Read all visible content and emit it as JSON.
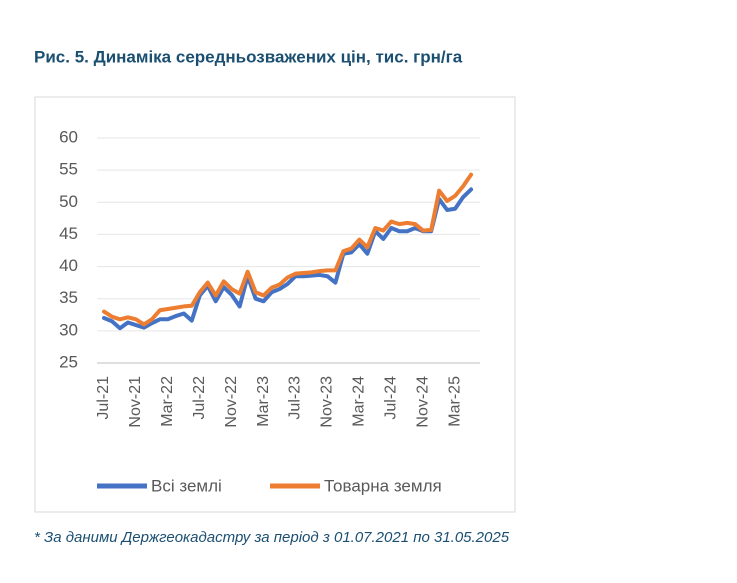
{
  "chart_data": {
    "type": "line",
    "title": "Рис. 5.  Динаміка середньозважених цін, тис. грн/га",
    "footnote": "* За даними Держгеокадастру за період з 01.07.2021 по 31.05.2025",
    "categories": [
      "Jul-21",
      null,
      null,
      null,
      "Nov-21",
      null,
      null,
      null,
      "Mar-22",
      null,
      null,
      null,
      "Jul-22",
      null,
      null,
      null,
      "Nov-22",
      null,
      null,
      null,
      "Mar-23",
      null,
      null,
      null,
      "Jul-23",
      null,
      null,
      null,
      "Nov-23",
      null,
      null,
      null,
      "Mar-24",
      null,
      null,
      null,
      "Jul-24",
      null,
      null,
      null,
      "Nov-24",
      null,
      null,
      null,
      "Mar-25",
      null,
      null
    ],
    "series": [
      {
        "name": "Всі землі",
        "color": "#4472c4",
        "values": [
          32.0,
          31.5,
          30.4,
          31.3,
          30.9,
          30.5,
          31.2,
          31.8,
          31.8,
          32.3,
          32.7,
          31.6,
          35.5,
          37.0,
          34.6,
          36.8,
          35.6,
          33.8,
          38.5,
          35.0,
          34.6,
          36.0,
          36.5,
          37.3,
          38.5,
          38.5,
          38.6,
          38.7,
          38.5,
          37.5,
          42.0,
          42.2,
          43.5,
          42.0,
          45.5,
          44.3,
          46.0,
          45.5,
          45.5,
          46.0,
          45.5,
          45.5,
          50.5,
          48.8,
          49.0,
          50.8,
          52.0
        ]
      },
      {
        "name": "Товарна земля",
        "color": "#ed7d31",
        "values": [
          33.0,
          32.2,
          31.8,
          32.1,
          31.8,
          31.0,
          31.8,
          33.2,
          33.4,
          33.6,
          33.8,
          33.9,
          36.0,
          37.5,
          35.5,
          37.7,
          36.5,
          35.8,
          39.2,
          36.0,
          35.5,
          36.7,
          37.2,
          38.3,
          38.9,
          39.0,
          39.1,
          39.3,
          39.4,
          39.4,
          42.4,
          42.8,
          44.2,
          43.0,
          46.0,
          45.6,
          47.0,
          46.6,
          46.8,
          46.6,
          45.6,
          45.7,
          51.8,
          50.2,
          51.0,
          52.5,
          54.3
        ]
      }
    ],
    "ylim": [
      25,
      60
    ],
    "yticks": [
      25,
      30,
      35,
      40,
      45,
      50,
      55,
      60
    ],
    "grid": true,
    "legend": "bottom"
  }
}
